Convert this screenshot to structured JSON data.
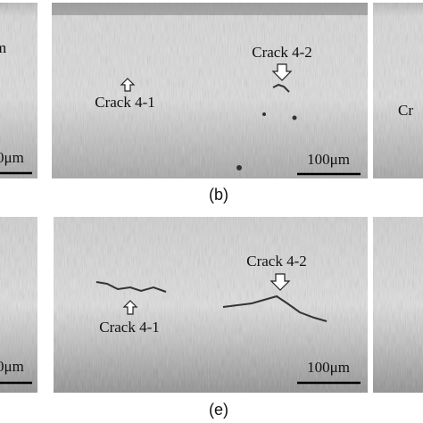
{
  "top_row": {
    "left_panel": {
      "label_fragment": "m",
      "scale_bar": "0μm"
    },
    "center_panel": {
      "crack_1": "Crack 4-1",
      "crack_2": "Crack 4-2",
      "scale_bar": "100μm"
    },
    "right_panel": {
      "label_fragment": "Cr"
    },
    "caption": "(b)"
  },
  "bottom_row": {
    "left_panel": {
      "scale_bar": "0μm"
    },
    "center_panel": {
      "crack_1": "Crack 4-1",
      "crack_2": "Crack 4-2",
      "scale_bar": "100μm"
    },
    "caption": "(e)"
  }
}
